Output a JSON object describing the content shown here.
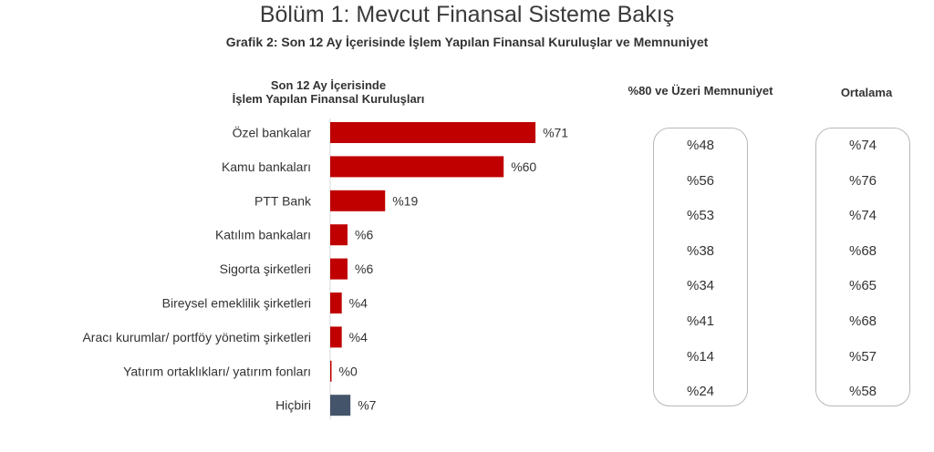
{
  "header": {
    "title": "Bölüm 1: Mevcut Finansal Sisteme Bakış",
    "subtitle": "Grafik 2: Son 12 Ay İçerisinde İşlem Yapılan Finansal Kuruluşlar ve Memnuniyet"
  },
  "columns": {
    "chart_head_line1": "Son 12 Ay İçerisinde",
    "chart_head_line2": "İşlem Yapılan Finansal Kuruluşları",
    "satisfaction_head": "%80 ve Üzeri Memnuniyet",
    "average_head": "Ortalama"
  },
  "colors": {
    "bar_main": "#c00000",
    "bar_none": "#44546a"
  },
  "chart_data": {
    "type": "bar",
    "orientation": "horizontal",
    "categories": [
      "Özel bankalar",
      "Kamu bankaları",
      "PTT Bank",
      "Katılım bankaları",
      "Sigorta şirketleri",
      "Bireysel emeklilik şirketleri",
      "Aracı kurumlar/ portföy yönetim şirketleri",
      "Yatırım ortaklıkları/ yatırım fonları",
      "Hiçbiri"
    ],
    "values": [
      71,
      60,
      19,
      6,
      6,
      4,
      4,
      0,
      7
    ],
    "value_labels": [
      "%71",
      "%60",
      "%19",
      "%6",
      "%6",
      "%4",
      "%4",
      "%0",
      "%7"
    ],
    "xlim": [
      0,
      100
    ],
    "grid": false,
    "satisfaction_80_plus": [
      "%48",
      "%56",
      "%53",
      "%38",
      "%34",
      "%41",
      "%14",
      "%24"
    ],
    "average": [
      "%74",
      "%76",
      "%74",
      "%68",
      "%65",
      "%68",
      "%57",
      "%58"
    ]
  }
}
